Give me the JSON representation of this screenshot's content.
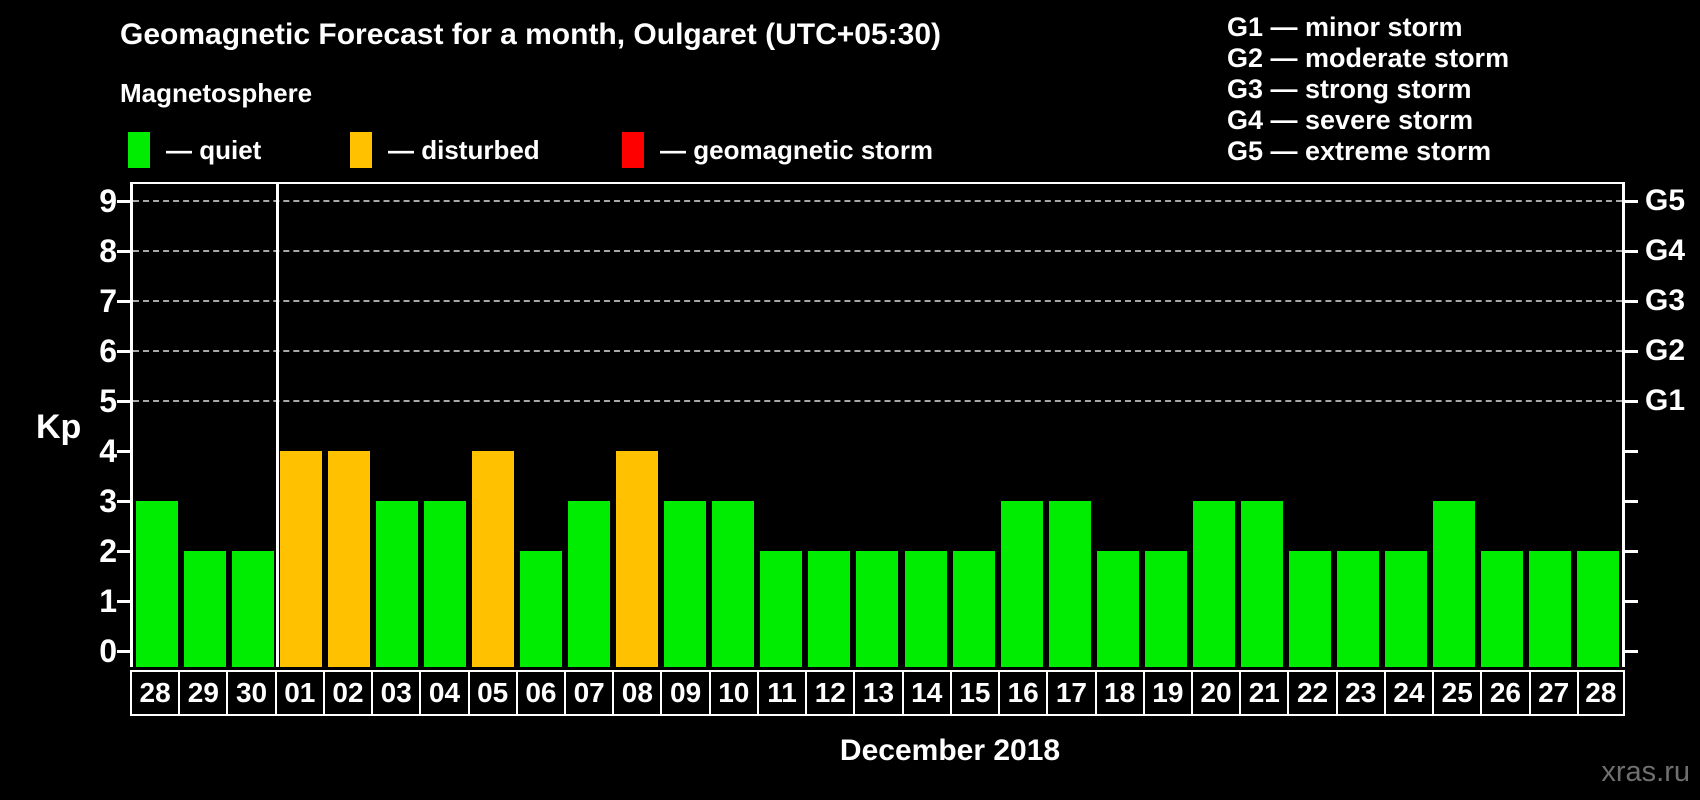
{
  "header": {
    "title": "Geomagnetic Forecast for a month, Oulgaret (UTC+05:30)",
    "subtitle": "Magnetosphere",
    "legend": [
      {
        "state": "quiet",
        "label": "— quiet",
        "color": "#00ec00"
      },
      {
        "state": "disturbed",
        "label": "— disturbed",
        "color": "#ffc100"
      },
      {
        "state": "storm",
        "label": "— geomagnetic storm",
        "color": "#ff0000"
      }
    ],
    "g_scale_legend": [
      "G1 — minor storm",
      "G2 — moderate storm",
      "G3 — strong storm",
      "G4 — severe storm",
      "G5 — extreme storm"
    ]
  },
  "chart_data": {
    "type": "bar",
    "title": "Geomagnetic Forecast for a month, Oulgaret (UTC+05:30)",
    "ylabel": "Kp",
    "xlabel": "December 2018",
    "ylim": [
      0,
      9.4
    ],
    "yticks": [
      0,
      1,
      2,
      3,
      4,
      5,
      6,
      7,
      8,
      9
    ],
    "grid": "horizontal dashed lines at storm levels only",
    "grid_levels": [
      5,
      6,
      7,
      8,
      9
    ],
    "right_axis": {
      "5": "G1",
      "6": "G2",
      "7": "G3",
      "8": "G4",
      "9": "G5"
    },
    "categories": [
      "28",
      "29",
      "30",
      "01",
      "02",
      "03",
      "04",
      "05",
      "06",
      "07",
      "08",
      "09",
      "10",
      "11",
      "12",
      "13",
      "14",
      "15",
      "16",
      "17",
      "18",
      "19",
      "20",
      "21",
      "22",
      "23",
      "24",
      "25",
      "26",
      "27",
      "28"
    ],
    "values": [
      3,
      2,
      2,
      4,
      4,
      3,
      3,
      4,
      2,
      3,
      4,
      3,
      3,
      2,
      2,
      2,
      2,
      2,
      3,
      3,
      2,
      2,
      3,
      3,
      2,
      2,
      2,
      3,
      2,
      2,
      2
    ],
    "states": [
      "quiet",
      "quiet",
      "quiet",
      "disturbed",
      "disturbed",
      "quiet",
      "quiet",
      "disturbed",
      "quiet",
      "quiet",
      "disturbed",
      "quiet",
      "quiet",
      "quiet",
      "quiet",
      "quiet",
      "quiet",
      "quiet",
      "quiet",
      "quiet",
      "quiet",
      "quiet",
      "quiet",
      "quiet",
      "quiet",
      "quiet",
      "quiet",
      "quiet",
      "quiet",
      "quiet",
      "quiet"
    ],
    "colors": {
      "quiet": "#00ec00",
      "disturbed": "#ffc100",
      "storm": "#ff0000"
    },
    "separator_after_index": 2,
    "legend_position": "top"
  },
  "footer": {
    "watermark": "xras.ru"
  }
}
